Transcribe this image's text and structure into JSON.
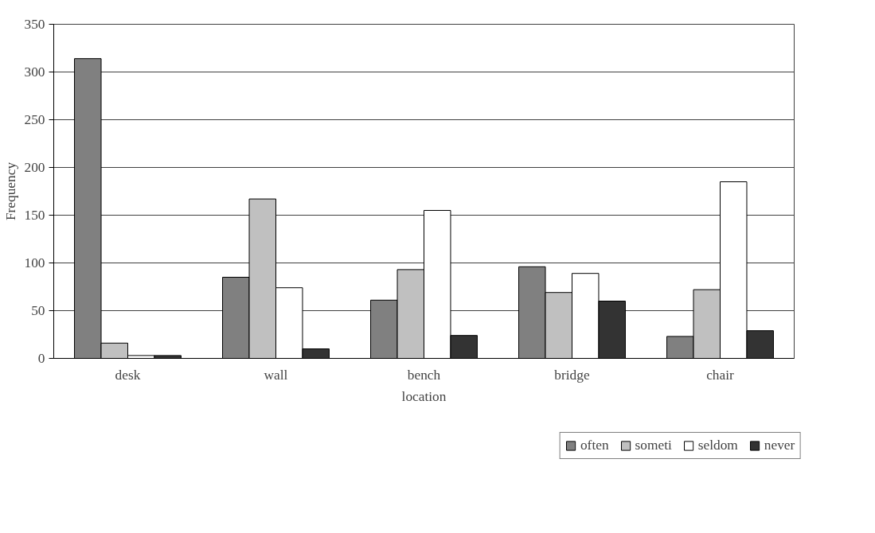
{
  "chart_data": {
    "type": "bar",
    "xlabel": "location",
    "ylabel": "Frequency",
    "categories": [
      "desk",
      "wall",
      "bench",
      "bridge",
      "chair"
    ],
    "series": [
      {
        "name": "often",
        "color": "#808080",
        "values": [
          314,
          85,
          61,
          96,
          23
        ]
      },
      {
        "name": "someti",
        "color": "#c0c0c0",
        "values": [
          16,
          167,
          93,
          69,
          72
        ]
      },
      {
        "name": "seldom",
        "color": "#ffffff",
        "values": [
          3,
          74,
          155,
          89,
          185
        ]
      },
      {
        "name": "never",
        "color": "#333333",
        "values": [
          3,
          10,
          24,
          60,
          29
        ]
      }
    ],
    "ylim": [
      0,
      350
    ],
    "yticks": [
      0,
      50,
      100,
      150,
      200,
      250,
      300,
      350
    ],
    "grid": "y",
    "legend": "bottom"
  }
}
